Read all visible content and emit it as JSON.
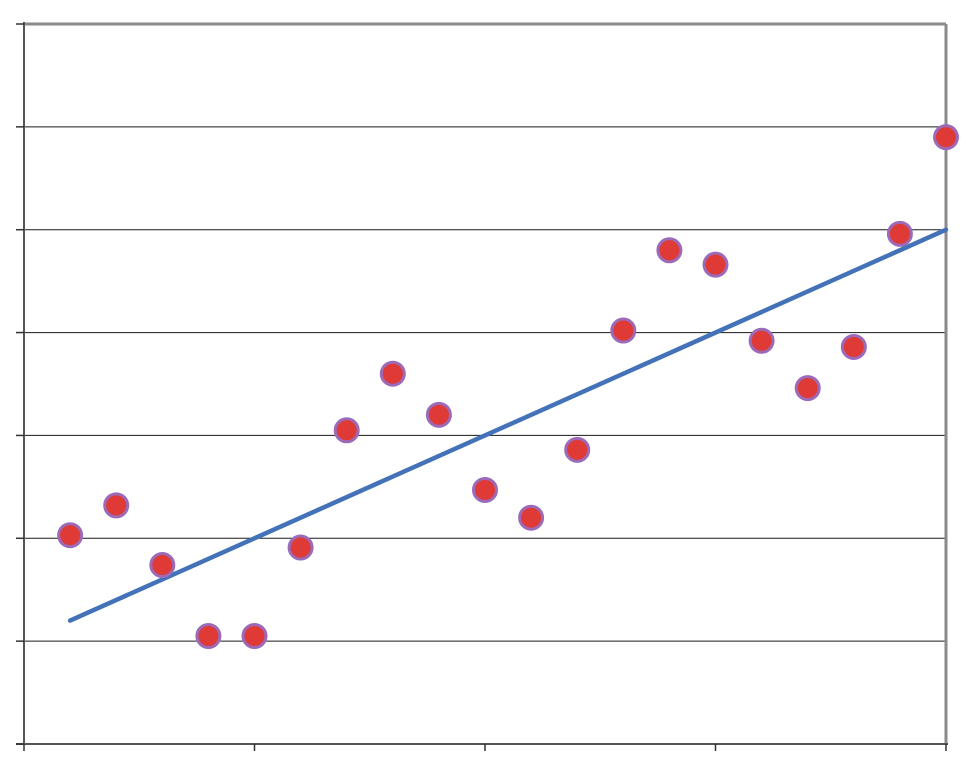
{
  "chart_data": {
    "type": "scatter",
    "title": "",
    "xlabel": "",
    "ylabel": "",
    "xlim": [
      0,
      20
    ],
    "ylim": [
      0,
      7
    ],
    "x_ticks": [
      0,
      5,
      10,
      15,
      20
    ],
    "y_ticks": [
      0,
      1,
      2,
      3,
      4,
      5,
      6,
      7
    ],
    "grid": "horizontal",
    "legend": "none",
    "series": [
      {
        "kind": "points",
        "color": "#e03a36",
        "edge_color": "#9b6ab8",
        "points": [
          {
            "x": 1,
            "y": 2.03
          },
          {
            "x": 2,
            "y": 2.32
          },
          {
            "x": 3,
            "y": 1.74
          },
          {
            "x": 4,
            "y": 1.05
          },
          {
            "x": 5,
            "y": 1.05
          },
          {
            "x": 6,
            "y": 1.91
          },
          {
            "x": 7,
            "y": 3.05
          },
          {
            "x": 8,
            "y": 3.6
          },
          {
            "x": 9,
            "y": 3.2
          },
          {
            "x": 10,
            "y": 2.47
          },
          {
            "x": 11,
            "y": 2.2
          },
          {
            "x": 12,
            "y": 2.86
          },
          {
            "x": 13,
            "y": 4.02
          },
          {
            "x": 14,
            "y": 4.8
          },
          {
            "x": 15,
            "y": 4.66
          },
          {
            "x": 16,
            "y": 3.92
          },
          {
            "x": 17,
            "y": 3.46
          },
          {
            "x": 18,
            "y": 3.86
          },
          {
            "x": 19,
            "y": 4.96
          },
          {
            "x": 20,
            "y": 5.9
          }
        ]
      },
      {
        "kind": "trendline",
        "color": "#4472b8",
        "points": [
          {
            "x": 1,
            "y": 1.2
          },
          {
            "x": 20,
            "y": 5.0
          }
        ]
      }
    ]
  }
}
